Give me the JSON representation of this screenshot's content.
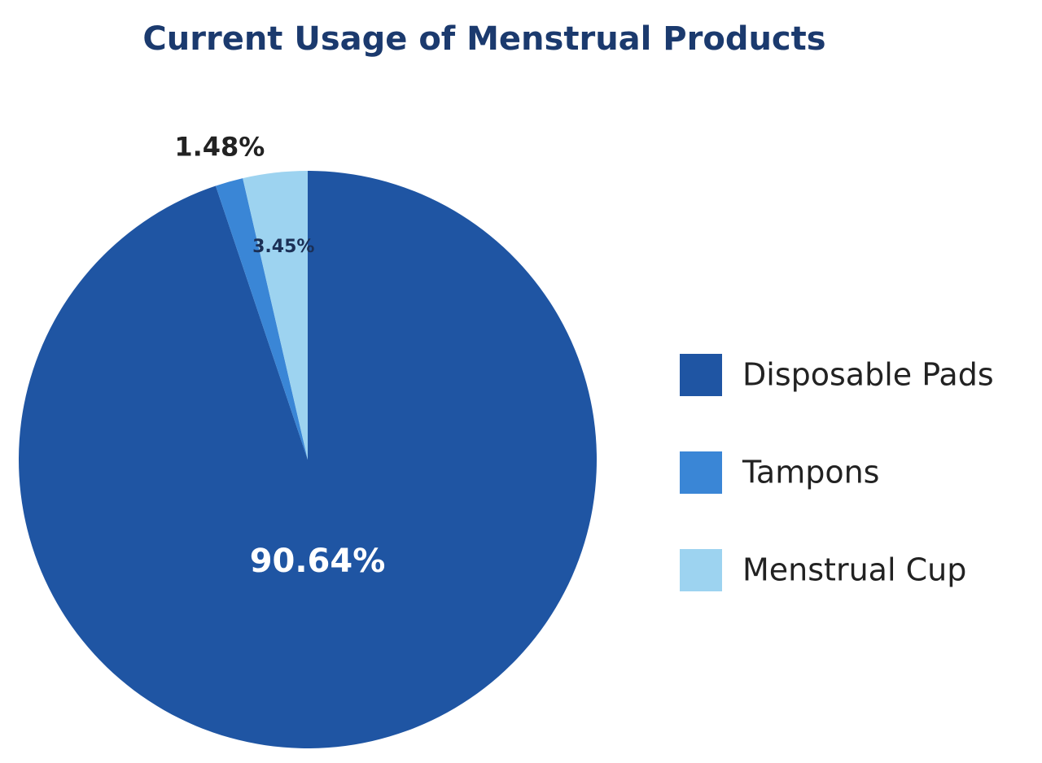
{
  "chart_data": {
    "type": "pie",
    "title": "Current Usage of Menstrual Products",
    "categories": [
      "Disposable Pads",
      "Tampons",
      "Menstrual Cup"
    ],
    "values": [
      90.64,
      1.48,
      3.45
    ],
    "value_labels": [
      "90.64%",
      "1.48%",
      "3.45%"
    ],
    "colors": [
      "#1f55a3",
      "#3a86d6",
      "#9dd3f0"
    ],
    "legend": "right"
  }
}
